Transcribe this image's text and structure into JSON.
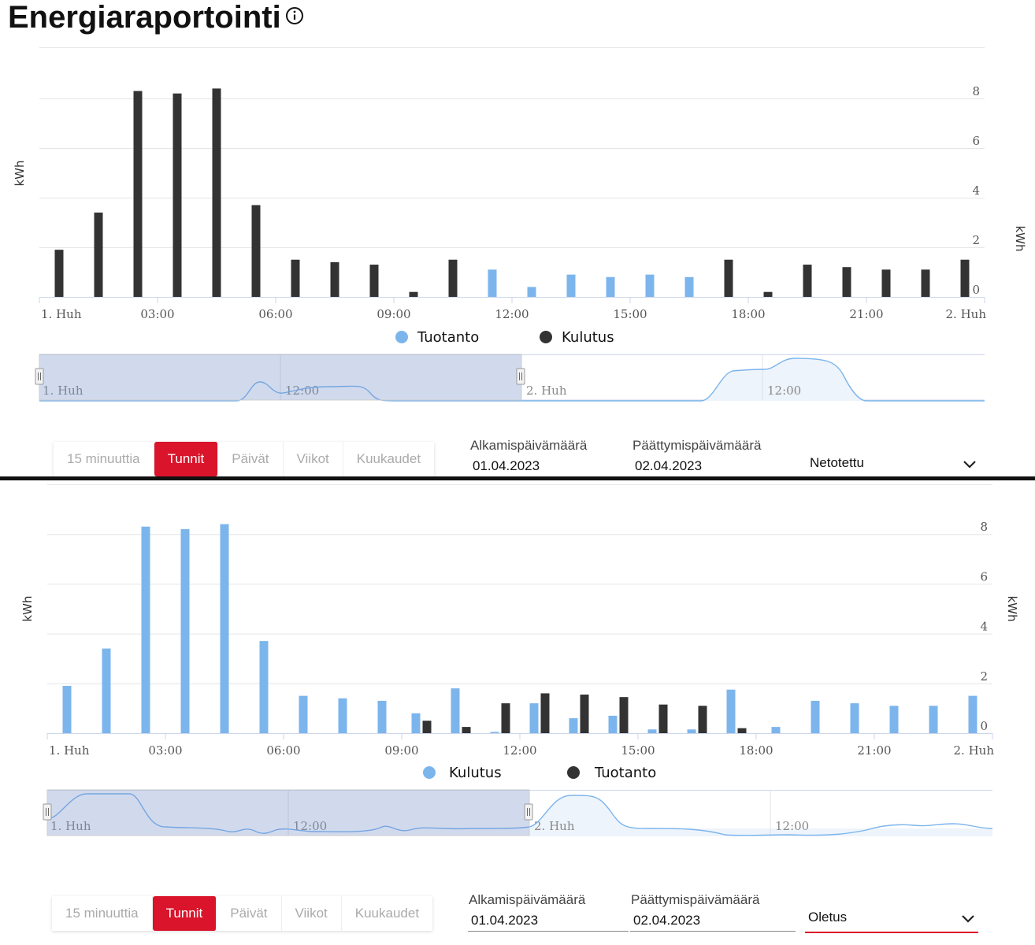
{
  "page": {
    "title": "Energiaraportointi"
  },
  "panels": [
    {
      "unit_label": "kWh",
      "legend": [
        {
          "label": "Tuotanto",
          "color": "#7cb5ec"
        },
        {
          "label": "Kulutus",
          "color": "#333333"
        }
      ],
      "navigator_labels": [
        "1. Huh",
        "12:00",
        "2. Huh",
        "12:00"
      ],
      "controls": {
        "granularity": [
          "15 minuuttia",
          "Tunnit",
          "Päivät",
          "Viikot",
          "Kuukaudet"
        ],
        "active": "Tunnit",
        "start_label": "Alkamispäivämäärä",
        "start_value": "01.04.2023",
        "end_label": "Päättymispäivämäärä",
        "end_value": "02.04.2023",
        "mode": "Netotettu"
      }
    },
    {
      "unit_label": "kWh",
      "legend": [
        {
          "label": "Kulutus",
          "color": "#7cb5ec"
        },
        {
          "label": "Tuotanto",
          "color": "#333333"
        }
      ],
      "navigator_labels": [
        "1. Huh",
        "12:00",
        "2. Huh",
        "12:00"
      ],
      "controls": {
        "granularity": [
          "15 minuuttia",
          "Tunnit",
          "Päivät",
          "Viikot",
          "Kuukaudet"
        ],
        "active": "Tunnit",
        "start_label": "Alkamispäivämäärä",
        "start_value": "01.04.2023",
        "end_label": "Päättymispäivämäärä",
        "end_value": "02.04.2023",
        "mode": "Oletus"
      }
    }
  ],
  "chart_data": [
    {
      "type": "bar",
      "categories": [
        "00",
        "01",
        "02",
        "03",
        "04",
        "05",
        "06",
        "07",
        "08",
        "09",
        "10",
        "11",
        "12",
        "13",
        "14",
        "15",
        "16",
        "17",
        "18",
        "19",
        "20",
        "21",
        "22",
        "23"
      ],
      "x_tick_labels": [
        "1. Huh",
        "03:00",
        "06:00",
        "09:00",
        "12:00",
        "15:00",
        "18:00",
        "21:00",
        "2. Huh"
      ],
      "y_tick_labels": [
        "0",
        "2",
        "4",
        "6",
        "8"
      ],
      "ylim": [
        0,
        9
      ],
      "series": [
        {
          "name": "Tuotanto",
          "color": "#7cb5ec",
          "values": [
            0,
            0,
            0,
            0,
            0,
            0,
            0,
            0,
            0,
            0,
            0,
            1.1,
            0.4,
            0.9,
            0.8,
            0.9,
            0.8,
            0,
            0,
            0,
            0,
            0,
            0,
            0
          ]
        },
        {
          "name": "Kulutus",
          "color": "#333333",
          "values": [
            1.9,
            3.4,
            8.3,
            8.2,
            8.4,
            3.7,
            1.5,
            1.4,
            1.3,
            0.2,
            1.5,
            0,
            0,
            0,
            0,
            0,
            0,
            1.5,
            0.2,
            1.3,
            1.2,
            1.1,
            1.1,
            1.5
          ]
        }
      ]
    },
    {
      "type": "bar",
      "categories": [
        "00",
        "01",
        "02",
        "03",
        "04",
        "05",
        "06",
        "07",
        "08",
        "09",
        "10",
        "11",
        "12",
        "13",
        "14",
        "15",
        "16",
        "17",
        "18",
        "19",
        "20",
        "21",
        "22",
        "23"
      ],
      "x_tick_labels": [
        "1. Huh",
        "03:00",
        "06:00",
        "09:00",
        "12:00",
        "15:00",
        "18:00",
        "21:00",
        "2. Huh"
      ],
      "y_tick_labels": [
        "0",
        "2",
        "4",
        "6",
        "8"
      ],
      "ylim": [
        0,
        9
      ],
      "series": [
        {
          "name": "Kulutus",
          "color": "#7cb5ec",
          "values": [
            1.9,
            3.4,
            8.3,
            8.2,
            8.4,
            3.7,
            1.5,
            1.4,
            1.3,
            0.8,
            1.8,
            0.05,
            1.2,
            0.6,
            0.7,
            0.15,
            0.15,
            1.75,
            0.25,
            1.3,
            1.2,
            1.1,
            1.1,
            1.5
          ]
        },
        {
          "name": "Tuotanto",
          "color": "#333333",
          "values": [
            0,
            0,
            0,
            0,
            0,
            0,
            0,
            0,
            0,
            0.5,
            0.25,
            1.2,
            1.6,
            1.55,
            1.45,
            1.15,
            1.1,
            0.2,
            0,
            0,
            0,
            0,
            0,
            0
          ]
        }
      ]
    }
  ]
}
